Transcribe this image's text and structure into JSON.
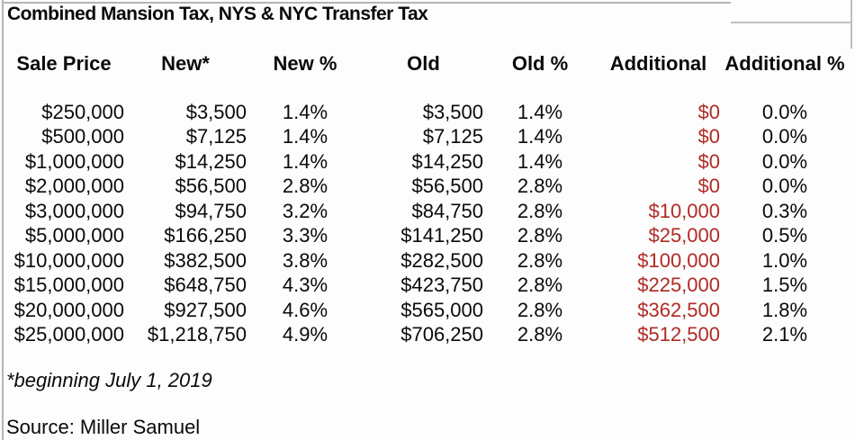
{
  "colors": {
    "additional_red": "#b02b24",
    "gridline_gray": "#b5b5b5",
    "background": "#fdfdfd",
    "text": "#0a0a0a"
  },
  "chart_data": {
    "type": "table",
    "title": "Combined Mansion Tax, NYS & NYC Transfer Tax",
    "footnote": "*beginning July 1, 2019",
    "source": "Source: Miller Samuel",
    "columns": [
      {
        "key": "sale_price",
        "label": "Sale Price",
        "align": "right"
      },
      {
        "key": "new_amount",
        "label": "New*",
        "align": "right"
      },
      {
        "key": "new_pct",
        "label": "New %",
        "align": "center"
      },
      {
        "key": "old_amount",
        "label": "Old",
        "align": "right"
      },
      {
        "key": "old_pct",
        "label": "Old %",
        "align": "center"
      },
      {
        "key": "additional_amount",
        "label": "Additional",
        "align": "right",
        "highlight": true
      },
      {
        "key": "additional_pct",
        "label": "Additional %",
        "align": "center"
      }
    ],
    "rows": [
      [
        "$250,000",
        "$3,500",
        "1.4%",
        "$3,500",
        "1.4%",
        "$0",
        "0.0%"
      ],
      [
        "$500,000",
        "$7,125",
        "1.4%",
        "$7,125",
        "1.4%",
        "$0",
        "0.0%"
      ],
      [
        "$1,000,000",
        "$14,250",
        "1.4%",
        "$14,250",
        "1.4%",
        "$0",
        "0.0%"
      ],
      [
        "$2,000,000",
        "$56,500",
        "2.8%",
        "$56,500",
        "2.8%",
        "$0",
        "0.0%"
      ],
      [
        "$3,000,000",
        "$94,750",
        "3.2%",
        "$84,750",
        "2.8%",
        "$10,000",
        "0.3%"
      ],
      [
        "$5,000,000",
        "$166,250",
        "3.3%",
        "$141,250",
        "2.8%",
        "$25,000",
        "0.5%"
      ],
      [
        "$10,000,000",
        "$382,500",
        "3.8%",
        "$282,500",
        "2.8%",
        "$100,000",
        "1.0%"
      ],
      [
        "$15,000,000",
        "$648,750",
        "4.3%",
        "$423,750",
        "2.8%",
        "$225,000",
        "1.5%"
      ],
      [
        "$20,000,000",
        "$927,500",
        "4.6%",
        "$565,000",
        "2.8%",
        "$362,500",
        "1.8%"
      ],
      [
        "$25,000,000",
        "$1,218,750",
        "4.9%",
        "$706,250",
        "2.8%",
        "$512,500",
        "2.1%"
      ]
    ]
  }
}
